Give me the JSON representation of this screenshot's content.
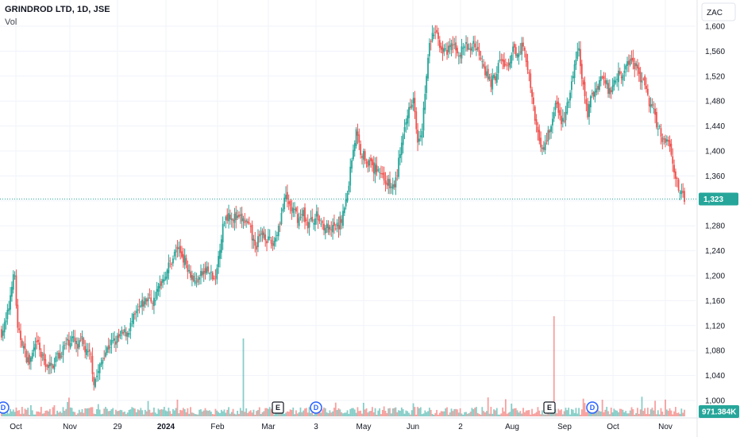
{
  "header": {
    "title": "GRINDROD LTD, 1D, JSE",
    "volume_label": "Vol"
  },
  "currency": "ZAC",
  "last_price_label": "1,323",
  "last_volume_label": "971.384K",
  "colors": {
    "up": "#26a69a",
    "down": "#ef5350",
    "grid": "#f0f3fa",
    "axis": "#e0e3eb",
    "event_dividend": "#2962ff",
    "event_earnings": "#131722"
  },
  "events": [
    {
      "type": "dividend",
      "label": "D",
      "at": "Sep 2023"
    },
    {
      "type": "earnings",
      "label": "E",
      "at": "Mar 2024"
    },
    {
      "type": "dividend",
      "label": "D",
      "at": "Apr 2024"
    },
    {
      "type": "earnings",
      "label": "E",
      "at": "Aug 2024"
    },
    {
      "type": "dividend",
      "label": "D",
      "at": "Sep 2024"
    }
  ],
  "chart_data": {
    "type": "candlestick",
    "title": "GRINDROD LTD, 1D, JSE",
    "ylim": [
      990,
      1610
    ],
    "y_ticks": [
      1000,
      1040,
      1080,
      1120,
      1160,
      1200,
      1240,
      1280,
      1320,
      1360,
      1400,
      1440,
      1480,
      1520,
      1560,
      1600
    ],
    "y_tick_labels": [
      "1,000",
      "1,040",
      "1,080",
      "1,120",
      "1,160",
      "1,200",
      "1,240",
      "1,280",
      "1,320",
      "1,360",
      "1,400",
      "1,440",
      "1,480",
      "1,520",
      "1,560",
      "1,600"
    ],
    "x_tick_labels": [
      "Oct",
      "Nov",
      "29",
      "2024",
      "Feb",
      "Mar",
      "3",
      "May",
      "Jun",
      "2",
      "Aug",
      "Sep",
      "Oct",
      "Nov"
    ],
    "x_tick_bold": [
      false,
      false,
      false,
      true,
      false,
      false,
      false,
      false,
      false,
      false,
      false,
      false,
      false,
      false
    ],
    "close_path": [
      [
        0,
        1110
      ],
      [
        3,
        1125
      ],
      [
        5,
        1150
      ],
      [
        7,
        1190
      ],
      [
        9,
        1200
      ],
      [
        11,
        1110
      ],
      [
        14,
        1095
      ],
      [
        16,
        1075
      ],
      [
        19,
        1060
      ],
      [
        22,
        1080
      ],
      [
        25,
        1090
      ],
      [
        27,
        1070
      ],
      [
        30,
        1060
      ],
      [
        33,
        1050
      ],
      [
        36,
        1065
      ],
      [
        40,
        1075
      ],
      [
        44,
        1090
      ],
      [
        48,
        1100
      ],
      [
        52,
        1085
      ],
      [
        55,
        1095
      ],
      [
        58,
        1075
      ],
      [
        61,
        1070
      ],
      [
        63,
        1030
      ],
      [
        66,
        1045
      ],
      [
        70,
        1075
      ],
      [
        74,
        1090
      ],
      [
        78,
        1095
      ],
      [
        82,
        1105
      ],
      [
        86,
        1110
      ],
      [
        90,
        1130
      ],
      [
        95,
        1150
      ],
      [
        100,
        1165
      ],
      [
        104,
        1160
      ],
      [
        108,
        1185
      ],
      [
        112,
        1205
      ],
      [
        116,
        1225
      ],
      [
        120,
        1245
      ],
      [
        124,
        1230
      ],
      [
        128,
        1210
      ],
      [
        132,
        1190
      ],
      [
        136,
        1200
      ],
      [
        140,
        1210
      ],
      [
        143,
        1200
      ],
      [
        146,
        1190
      ],
      [
        149,
        1250
      ],
      [
        152,
        1290
      ],
      [
        155,
        1300
      ],
      [
        158,
        1295
      ],
      [
        161,
        1290
      ],
      [
        164,
        1290
      ],
      [
        167,
        1285
      ],
      [
        170,
        1270
      ],
      [
        173,
        1245
      ],
      [
        176,
        1260
      ],
      [
        179,
        1270
      ],
      [
        182,
        1255
      ],
      [
        185,
        1250
      ],
      [
        188,
        1270
      ],
      [
        191,
        1300
      ],
      [
        194,
        1325
      ],
      [
        197,
        1310
      ],
      [
        200,
        1300
      ],
      [
        203,
        1290
      ],
      [
        206,
        1300
      ],
      [
        209,
        1280
      ],
      [
        212,
        1290
      ],
      [
        215,
        1295
      ],
      [
        218,
        1285
      ],
      [
        221,
        1280
      ],
      [
        224,
        1270
      ],
      [
        227,
        1275
      ],
      [
        230,
        1280
      ],
      [
        233,
        1300
      ],
      [
        236,
        1330
      ],
      [
        239,
        1390
      ],
      [
        242,
        1430
      ],
      [
        245,
        1400
      ],
      [
        248,
        1390
      ],
      [
        251,
        1380
      ],
      [
        254,
        1370
      ],
      [
        257,
        1375
      ],
      [
        260,
        1360
      ],
      [
        263,
        1350
      ],
      [
        266,
        1340
      ],
      [
        269,
        1350
      ],
      [
        272,
        1400
      ],
      [
        275,
        1430
      ],
      [
        278,
        1470
      ],
      [
        281,
        1490
      ],
      [
        284,
        1420
      ],
      [
        287,
        1440
      ],
      [
        290,
        1520
      ],
      [
        292,
        1570
      ],
      [
        295,
        1590
      ],
      [
        298,
        1580
      ],
      [
        301,
        1560
      ],
      [
        304,
        1555
      ],
      [
        307,
        1570
      ],
      [
        310,
        1565
      ],
      [
        313,
        1555
      ],
      [
        316,
        1570
      ],
      [
        319,
        1560
      ],
      [
        322,
        1575
      ],
      [
        325,
        1560
      ],
      [
        328,
        1550
      ],
      [
        331,
        1520
      ],
      [
        334,
        1510
      ],
      [
        337,
        1520
      ],
      [
        340,
        1545
      ],
      [
        343,
        1540
      ],
      [
        346,
        1530
      ],
      [
        349,
        1560
      ],
      [
        352,
        1560
      ],
      [
        355,
        1570
      ],
      [
        358,
        1550
      ],
      [
        361,
        1500
      ],
      [
        364,
        1450
      ],
      [
        367,
        1420
      ],
      [
        370,
        1400
      ],
      [
        373,
        1430
      ],
      [
        376,
        1450
      ],
      [
        379,
        1480
      ],
      [
        382,
        1440
      ],
      [
        385,
        1460
      ],
      [
        388,
        1490
      ],
      [
        391,
        1540
      ],
      [
        394,
        1560
      ],
      [
        397,
        1500
      ],
      [
        400,
        1460
      ],
      [
        403,
        1490
      ],
      [
        406,
        1500
      ],
      [
        409,
        1520
      ],
      [
        412,
        1510
      ],
      [
        415,
        1495
      ],
      [
        418,
        1510
      ],
      [
        421,
        1530
      ],
      [
        424,
        1520
      ],
      [
        427,
        1540
      ],
      [
        430,
        1550
      ],
      [
        433,
        1535
      ],
      [
        436,
        1520
      ],
      [
        439,
        1500
      ],
      [
        442,
        1480
      ],
      [
        445,
        1460
      ],
      [
        448,
        1440
      ],
      [
        451,
        1420
      ],
      [
        454,
        1420
      ],
      [
        457,
        1400
      ],
      [
        460,
        1360
      ],
      [
        463,
        1330
      ],
      [
        466,
        1323
      ]
    ],
    "volume_spikes": [
      {
        "at": 36,
        "height": 1,
        "up": false
      },
      {
        "at": 66,
        "height": 1.1,
        "up": true
      },
      {
        "at": 165,
        "height": 7,
        "up": true
      },
      {
        "at": 377,
        "height": 9,
        "up": false
      }
    ],
    "last_close": 1323
  }
}
